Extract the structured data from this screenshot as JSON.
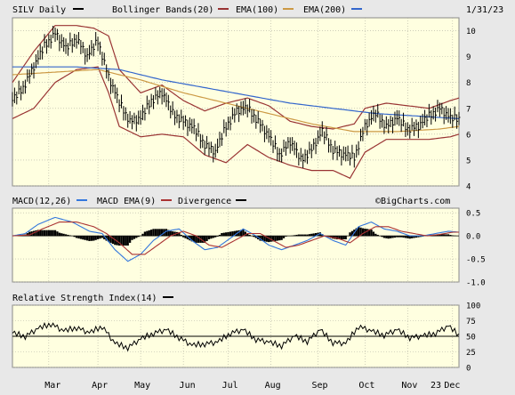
{
  "header": {
    "ticker_label": "SILV Daily",
    "bb_label": "Bollinger Bands(20)",
    "ema100_label": "EMA(100)",
    "ema200_label": "EMA(200)",
    "date": "1/31/23"
  },
  "macd_header": {
    "macd_label": "MACD(12,26)",
    "macd_ema_label": "MACD EMA(9)",
    "divergence_label": "Divergence",
    "credit": "©BigCharts.com"
  },
  "rsi_header": {
    "rsi_label": "Relative Strength Index(14)"
  },
  "colors": {
    "panel_bg": "#ffffe0",
    "bollinger": "#993333",
    "ema100": "#cc9944",
    "ema200": "#3366cc",
    "price": "#000000",
    "macd": "#3377dd",
    "macd_ema": "#aa3333",
    "divergence": "#000000"
  },
  "chart_data": [
    {
      "type": "line",
      "name": "price",
      "x_axis": {
        "ticks": [
          "Mar",
          "Apr",
          "May",
          "Jun",
          "Jul",
          "Aug",
          "Sep",
          "Oct",
          "Nov",
          "Dec",
          "23"
        ]
      },
      "y_axis": {
        "ticks": [
          10,
          9,
          8,
          7,
          6,
          5,
          4
        ],
        "range": [
          4,
          10.5
        ],
        "side": "right"
      },
      "anchors": {
        "price": [
          [
            0,
            7.3
          ],
          [
            5,
            7.8
          ],
          [
            10,
            8.6
          ],
          [
            15,
            9.4
          ],
          [
            20,
            9.9
          ],
          [
            25,
            9.3
          ],
          [
            30,
            9.7
          ],
          [
            35,
            9.0
          ],
          [
            40,
            9.6
          ],
          [
            45,
            8.2
          ],
          [
            50,
            7.2
          ],
          [
            55,
            6.5
          ],
          [
            60,
            6.6
          ],
          [
            65,
            7.3
          ],
          [
            70,
            7.6
          ],
          [
            75,
            6.8
          ],
          [
            80,
            6.5
          ],
          [
            85,
            6.2
          ],
          [
            90,
            5.6
          ],
          [
            95,
            5.3
          ],
          [
            100,
            6.3
          ],
          [
            105,
            6.9
          ],
          [
            110,
            7.0
          ],
          [
            115,
            6.5
          ],
          [
            120,
            5.9
          ],
          [
            125,
            5.2
          ],
          [
            130,
            5.7
          ],
          [
            135,
            5.0
          ],
          [
            140,
            5.4
          ],
          [
            145,
            6.1
          ],
          [
            150,
            5.4
          ],
          [
            155,
            5.2
          ],
          [
            160,
            5.1
          ],
          [
            165,
            6.3
          ],
          [
            170,
            6.8
          ],
          [
            175,
            6.3
          ],
          [
            180,
            6.6
          ],
          [
            185,
            6.2
          ],
          [
            190,
            6.3
          ],
          [
            195,
            6.7
          ],
          [
            200,
            7.0
          ],
          [
            205,
            6.6
          ],
          [
            209,
            6.6
          ]
        ],
        "bb_upper": [
          [
            0,
            8.0
          ],
          [
            10,
            9.2
          ],
          [
            20,
            10.2
          ],
          [
            30,
            10.2
          ],
          [
            38,
            10.1
          ],
          [
            45,
            9.8
          ],
          [
            50,
            8.5
          ],
          [
            60,
            7.6
          ],
          [
            70,
            7.9
          ],
          [
            80,
            7.3
          ],
          [
            90,
            6.9
          ],
          [
            100,
            7.2
          ],
          [
            110,
            7.4
          ],
          [
            120,
            7.1
          ],
          [
            130,
            6.5
          ],
          [
            140,
            6.3
          ],
          [
            150,
            6.2
          ],
          [
            160,
            6.4
          ],
          [
            165,
            7.0
          ],
          [
            175,
            7.2
          ],
          [
            185,
            7.1
          ],
          [
            195,
            7.0
          ],
          [
            205,
            7.3
          ],
          [
            209,
            7.4
          ]
        ],
        "bb_lower": [
          [
            0,
            6.6
          ],
          [
            10,
            7.0
          ],
          [
            20,
            8.0
          ],
          [
            30,
            8.5
          ],
          [
            40,
            8.6
          ],
          [
            45,
            7.6
          ],
          [
            50,
            6.3
          ],
          [
            60,
            5.9
          ],
          [
            70,
            6.0
          ],
          [
            80,
            5.9
          ],
          [
            90,
            5.2
          ],
          [
            100,
            4.9
          ],
          [
            110,
            5.6
          ],
          [
            120,
            5.1
          ],
          [
            130,
            4.8
          ],
          [
            140,
            4.6
          ],
          [
            150,
            4.6
          ],
          [
            158,
            4.3
          ],
          [
            165,
            5.3
          ],
          [
            175,
            5.8
          ],
          [
            185,
            5.8
          ],
          [
            195,
            5.8
          ],
          [
            205,
            5.9
          ],
          [
            209,
            6.0
          ]
        ],
        "ema100": [
          [
            0,
            8.3
          ],
          [
            20,
            8.4
          ],
          [
            40,
            8.5
          ],
          [
            60,
            8.1
          ],
          [
            80,
            7.6
          ],
          [
            100,
            7.2
          ],
          [
            120,
            6.8
          ],
          [
            140,
            6.4
          ],
          [
            160,
            6.1
          ],
          [
            180,
            6.1
          ],
          [
            200,
            6.2
          ],
          [
            209,
            6.3
          ]
        ],
        "ema200": [
          [
            0,
            8.6
          ],
          [
            30,
            8.6
          ],
          [
            50,
            8.5
          ],
          [
            70,
            8.1
          ],
          [
            90,
            7.8
          ],
          [
            110,
            7.5
          ],
          [
            130,
            7.2
          ],
          [
            150,
            7.0
          ],
          [
            170,
            6.8
          ],
          [
            190,
            6.7
          ],
          [
            209,
            6.6
          ]
        ]
      }
    },
    {
      "type": "line",
      "name": "macd",
      "y_axis": {
        "ticks": [
          0.5,
          0.0,
          -0.5,
          -1.0
        ],
        "range": [
          -1.0,
          0.6
        ],
        "side": "right"
      },
      "anchors": {
        "macd": [
          [
            0,
            0.0
          ],
          [
            6,
            0.05
          ],
          [
            12,
            0.25
          ],
          [
            20,
            0.4
          ],
          [
            28,
            0.3
          ],
          [
            36,
            0.1
          ],
          [
            42,
            0.05
          ],
          [
            48,
            -0.3
          ],
          [
            54,
            -0.55
          ],
          [
            60,
            -0.4
          ],
          [
            66,
            -0.1
          ],
          [
            72,
            0.1
          ],
          [
            78,
            0.15
          ],
          [
            84,
            -0.1
          ],
          [
            90,
            -0.3
          ],
          [
            96,
            -0.25
          ],
          [
            102,
            -0.05
          ],
          [
            108,
            0.15
          ],
          [
            114,
            0.0
          ],
          [
            120,
            -0.2
          ],
          [
            126,
            -0.3
          ],
          [
            132,
            -0.2
          ],
          [
            138,
            -0.1
          ],
          [
            144,
            0.05
          ],
          [
            150,
            -0.1
          ],
          [
            156,
            -0.2
          ],
          [
            162,
            0.2
          ],
          [
            168,
            0.3
          ],
          [
            174,
            0.15
          ],
          [
            180,
            0.1
          ],
          [
            186,
            0.0
          ],
          [
            192,
            0.0
          ],
          [
            198,
            0.05
          ],
          [
            204,
            0.1
          ],
          [
            209,
            0.08
          ]
        ],
        "signal": [
          [
            0,
            0.0
          ],
          [
            8,
            0.02
          ],
          [
            14,
            0.15
          ],
          [
            22,
            0.3
          ],
          [
            30,
            0.3
          ],
          [
            38,
            0.2
          ],
          [
            44,
            0.05
          ],
          [
            50,
            -0.15
          ],
          [
            56,
            -0.4
          ],
          [
            62,
            -0.4
          ],
          [
            68,
            -0.2
          ],
          [
            74,
            0.0
          ],
          [
            80,
            0.1
          ],
          [
            86,
            0.0
          ],
          [
            92,
            -0.2
          ],
          [
            98,
            -0.25
          ],
          [
            104,
            -0.1
          ],
          [
            110,
            0.05
          ],
          [
            116,
            0.05
          ],
          [
            122,
            -0.1
          ],
          [
            128,
            -0.25
          ],
          [
            134,
            -0.2
          ],
          [
            140,
            -0.1
          ],
          [
            146,
            0.0
          ],
          [
            152,
            -0.05
          ],
          [
            158,
            -0.15
          ],
          [
            164,
            0.05
          ],
          [
            170,
            0.2
          ],
          [
            176,
            0.2
          ],
          [
            182,
            0.1
          ],
          [
            188,
            0.05
          ],
          [
            194,
            0.0
          ],
          [
            200,
            0.03
          ],
          [
            206,
            0.08
          ],
          [
            209,
            0.08
          ]
        ]
      }
    },
    {
      "type": "line",
      "name": "rsi",
      "y_axis": {
        "ticks": [
          100,
          75,
          50,
          25,
          0
        ],
        "range": [
          0,
          100
        ],
        "side": "right"
      },
      "reference_line": 50,
      "anchors": {
        "rsi": [
          [
            0,
            55
          ],
          [
            6,
            50
          ],
          [
            12,
            62
          ],
          [
            18,
            70
          ],
          [
            24,
            58
          ],
          [
            30,
            64
          ],
          [
            36,
            55
          ],
          [
            42,
            66
          ],
          [
            48,
            38
          ],
          [
            54,
            32
          ],
          [
            60,
            45
          ],
          [
            66,
            55
          ],
          [
            72,
            60
          ],
          [
            78,
            48
          ],
          [
            84,
            35
          ],
          [
            90,
            38
          ],
          [
            96,
            40
          ],
          [
            102,
            55
          ],
          [
            108,
            60
          ],
          [
            114,
            45
          ],
          [
            120,
            40
          ],
          [
            126,
            35
          ],
          [
            132,
            50
          ],
          [
            138,
            42
          ],
          [
            144,
            60
          ],
          [
            150,
            40
          ],
          [
            156,
            38
          ],
          [
            162,
            66
          ],
          [
            168,
            58
          ],
          [
            174,
            52
          ],
          [
            180,
            60
          ],
          [
            186,
            48
          ],
          [
            192,
            50
          ],
          [
            198,
            55
          ],
          [
            204,
            66
          ],
          [
            209,
            52
          ]
        ]
      }
    }
  ]
}
